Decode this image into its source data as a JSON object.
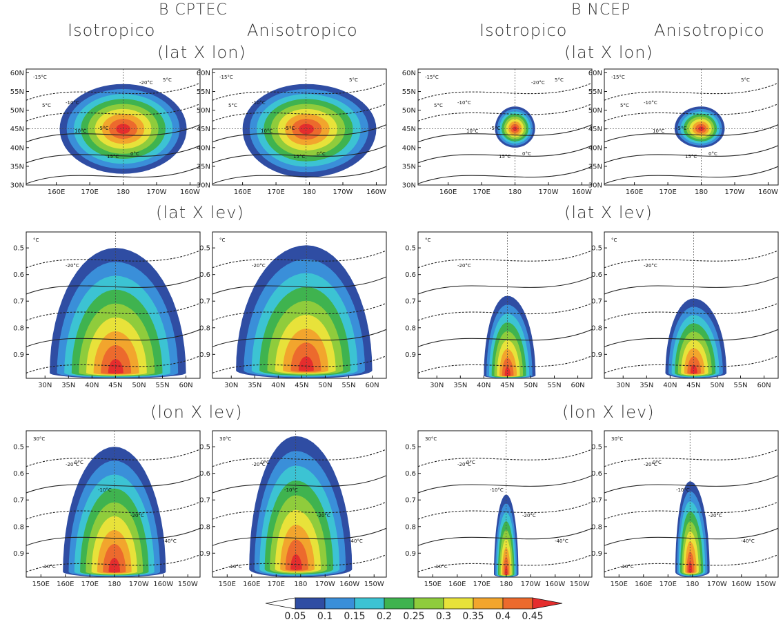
{
  "headers": {
    "left_title": "B CPTEC",
    "right_title": "B NCEP",
    "left_col1": "Isotropico",
    "left_col2": "Anisotropico",
    "right_col1": "Isotropico",
    "right_col2": "Anisotropico",
    "row1_left": "(lat X lon)",
    "row1_right": "(lat X lon)",
    "row2_left": "(lat X lev)",
    "row2_right": "(lat X lev)",
    "row3_left": "(lon X lev)",
    "row3_right": "(lon X lev)"
  },
  "chart_data": [
    {
      "type": "heatmap",
      "name": "B CPTEC Isotropico (lat X lon)",
      "xticks": [
        "160E",
        "170E",
        "180",
        "170W",
        "160W"
      ],
      "yticks": [
        "30N",
        "35N",
        "40N",
        "45N",
        "50N",
        "55N",
        "60N"
      ],
      "xlim": [
        151,
        203
      ],
      "ylim": [
        30,
        61
      ],
      "peak": {
        "x": 180,
        "y": 45,
        "value": 0.45
      },
      "extent_x": [
        161,
        199
      ],
      "extent_y": [
        33,
        57
      ],
      "contour_labels": [
        "-15°C",
        "-10°C",
        "-5°C",
        "0°C",
        "5°C",
        "5°C",
        "10°C",
        "15°C",
        "-20°C"
      ]
    },
    {
      "type": "heatmap",
      "name": "B CPTEC Anisotropico (lat X lon)",
      "xticks": [
        "160E",
        "170E",
        "180",
        "170W",
        "160W"
      ],
      "yticks": [
        "30N",
        "35N",
        "40N",
        "45N",
        "50N",
        "55N",
        "60N"
      ],
      "xlim": [
        151,
        203
      ],
      "ylim": [
        30,
        61
      ],
      "peak": {
        "x": 179,
        "y": 45,
        "value": 0.45
      },
      "extent_x": [
        160,
        200
      ],
      "extent_y": [
        32,
        57
      ],
      "contour_labels": [
        "-15°C",
        "-10°C",
        "-5°C",
        "0°C",
        "5°C",
        "5°C",
        "10°C",
        "15°C"
      ]
    },
    {
      "type": "heatmap",
      "name": "B NCEP Isotropico (lat X lon)",
      "xticks": [
        "160E",
        "170E",
        "180",
        "170W",
        "160W"
      ],
      "yticks": [
        "30N",
        "35N",
        "40N",
        "45N",
        "50N",
        "55N",
        "60N"
      ],
      "xlim": [
        151,
        203
      ],
      "ylim": [
        30,
        61
      ],
      "peak": {
        "x": 180,
        "y": 45,
        "value": 0.45
      },
      "extent_x": [
        174,
        186
      ],
      "extent_y": [
        40,
        51
      ],
      "contour_labels": [
        "-15°C",
        "-10°C",
        "-5°C",
        "0°C",
        "5°C",
        "5°C",
        "10°C",
        "15°C",
        "-20°C"
      ]
    },
    {
      "type": "heatmap",
      "name": "B NCEP Anisotropico (lat X lon)",
      "xticks": [
        "160E",
        "170E",
        "180",
        "170W",
        "160W"
      ],
      "yticks": [
        "30N",
        "35N",
        "40N",
        "45N",
        "50N",
        "55N",
        "60N"
      ],
      "xlim": [
        151,
        203
      ],
      "ylim": [
        30,
        61
      ],
      "peak": {
        "x": 180,
        "y": 45,
        "value": 0.45
      },
      "extent_x": [
        172,
        187
      ],
      "extent_y": [
        40,
        51
      ],
      "contour_labels": [
        "-15°C",
        "-10°C",
        "-5°C",
        "0°C",
        "5°C",
        "5°C",
        "10°C",
        "15°C"
      ]
    },
    {
      "type": "heatmap",
      "name": "B CPTEC Isotropico (lat X lev)",
      "xticks": [
        "30N",
        "35N",
        "40N",
        "45N",
        "50N",
        "55N",
        "60N"
      ],
      "yticks": [
        "0.5",
        "0.6",
        "0.7",
        "0.8",
        "0.9"
      ],
      "xlim": [
        26,
        63
      ],
      "ylim": [
        0.99,
        0.44
      ],
      "peak": {
        "x": 45,
        "y": 0.97,
        "value": 0.45
      },
      "extent_x": [
        31,
        60
      ],
      "extent_y": [
        0.5,
        0.99
      ],
      "contour_labels": [
        "°C",
        "-20°C"
      ]
    },
    {
      "type": "heatmap",
      "name": "B CPTEC Anisotropico (lat X lev)",
      "xticks": [
        "30N",
        "35N",
        "40N",
        "45N",
        "50N",
        "55N",
        "60N"
      ],
      "yticks": [
        "0.5",
        "0.6",
        "0.7",
        "0.8",
        "0.9"
      ],
      "xlim": [
        26,
        63
      ],
      "ylim": [
        0.99,
        0.44
      ],
      "peak": {
        "x": 46,
        "y": 0.96,
        "value": 0.45
      },
      "extent_x": [
        31,
        60
      ],
      "extent_y": [
        0.49,
        0.99
      ],
      "contour_labels": [
        "°C",
        "-20°C"
      ]
    },
    {
      "type": "heatmap",
      "name": "B NCEP Isotropico (lat X lev)",
      "xticks": [
        "30N",
        "35N",
        "40N",
        "45N",
        "50N",
        "55N",
        "60N"
      ],
      "yticks": [
        "0.5",
        "0.6",
        "0.7",
        "0.8",
        "0.9"
      ],
      "xlim": [
        26,
        63
      ],
      "ylim": [
        0.99,
        0.44
      ],
      "peak": {
        "x": 45,
        "y": 0.98,
        "value": 0.45
      },
      "extent_x": [
        40,
        51
      ],
      "extent_y": [
        0.68,
        0.99
      ],
      "contour_labels": [
        "°C",
        "-20°C"
      ]
    },
    {
      "type": "heatmap",
      "name": "B NCEP Anisotropico (lat X lev)",
      "xticks": [
        "30N",
        "35N",
        "40N",
        "45N",
        "50N",
        "55N",
        "60N"
      ],
      "yticks": [
        "0.5",
        "0.6",
        "0.7",
        "0.8",
        "0.9"
      ],
      "xlim": [
        26,
        63
      ],
      "ylim": [
        0.99,
        0.44
      ],
      "peak": {
        "x": 45,
        "y": 0.97,
        "value": 0.45
      },
      "extent_x": [
        39,
        52
      ],
      "extent_y": [
        0.69,
        0.99
      ],
      "contour_labels": [
        "°C",
        "-20°C"
      ]
    },
    {
      "type": "heatmap",
      "name": "B CPTEC Isotropico (lon X lev)",
      "xticks": [
        "150E",
        "160E",
        "170E",
        "180",
        "170W",
        "160W",
        "150W"
      ],
      "yticks": [
        "0.5",
        "0.6",
        "0.7",
        "0.8",
        "0.9"
      ],
      "xlim": [
        144,
        215
      ],
      "ylim": [
        0.99,
        0.44
      ],
      "peak": {
        "x": 180,
        "y": 0.97,
        "value": 0.45
      },
      "extent_x": [
        159,
        201
      ],
      "extent_y": [
        0.5,
        0.99
      ],
      "contour_labels": [
        "30°C",
        "-20°C",
        "-10°C",
        "-20°C",
        "-40°C",
        "-10°C",
        "0°C"
      ]
    },
    {
      "type": "heatmap",
      "name": "B CPTEC Anisotropico (lon X lev)",
      "xticks": [
        "150E",
        "160E",
        "170E",
        "180",
        "170W",
        "160W",
        "150W"
      ],
      "yticks": [
        "0.5",
        "0.6",
        "0.7",
        "0.8",
        "0.9"
      ],
      "xlim": [
        144,
        215
      ],
      "ylim": [
        0.99,
        0.44
      ],
      "peak": {
        "x": 178,
        "y": 0.96,
        "value": 0.45
      },
      "extent_x": [
        159,
        201
      ],
      "extent_y": [
        0.46,
        0.99
      ],
      "contour_labels": [
        "30°C",
        "-20°C",
        "-10°C",
        "-20°C",
        "-40°C",
        "-10°C",
        "0°C"
      ]
    },
    {
      "type": "heatmap",
      "name": "B NCEP Isotropico (lon X lev)",
      "xticks": [
        "150E",
        "160E",
        "170E",
        "180",
        "170W",
        "160W",
        "150W"
      ],
      "yticks": [
        "0.5",
        "0.6",
        "0.7",
        "0.8",
        "0.9"
      ],
      "xlim": [
        144,
        215
      ],
      "ylim": [
        0.99,
        0.44
      ],
      "peak": {
        "x": 180,
        "y": 0.98,
        "value": 0.45
      },
      "extent_x": [
        175,
        185
      ],
      "extent_y": [
        0.68,
        0.99
      ],
      "contour_labels": [
        "30°C",
        "-20°C",
        "-10°C",
        "-20°C",
        "-40°C",
        "-10°C",
        "0°C"
      ]
    },
    {
      "type": "heatmap",
      "name": "B NCEP Anisotropico (lon X lev)",
      "xticks": [
        "150E",
        "160E",
        "170E",
        "180",
        "170W",
        "160W",
        "150W"
      ],
      "yticks": [
        "0.5",
        "0.6",
        "0.7",
        "0.8",
        "0.9"
      ],
      "xlim": [
        144,
        215
      ],
      "ylim": [
        0.99,
        0.44
      ],
      "peak": {
        "x": 179,
        "y": 0.97,
        "value": 0.45
      },
      "extent_x": [
        173,
        187
      ],
      "extent_y": [
        0.63,
        0.99
      ],
      "contour_labels": [
        "30°C",
        "-20°C",
        "-10°C",
        "-20°C",
        "-40°C",
        "-10°C",
        "0°C"
      ]
    }
  ],
  "colorbar": {
    "labels": [
      "0.05",
      "0.1",
      "0.15",
      "0.2",
      "0.25",
      "0.3",
      "0.35",
      "0.4",
      "0.45"
    ],
    "colors": [
      "#ffffff",
      "#2f4da3",
      "#3a8fd9",
      "#3cc3d3",
      "#3fb34f",
      "#8fcc3c",
      "#e8e23a",
      "#f2a52d",
      "#ec6a2d",
      "#e52d2d"
    ]
  }
}
